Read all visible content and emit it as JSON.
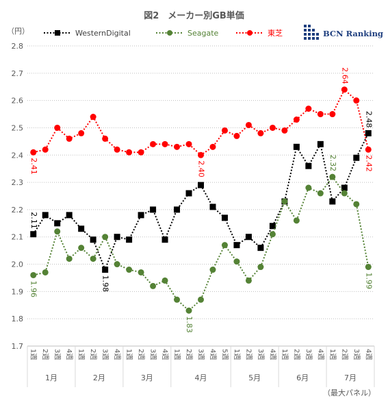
{
  "title": "図2　メーカー別GB単価",
  "unit_label": "（円）",
  "footnote": "（最大パネル）",
  "logo": {
    "text": "BCN Ranking",
    "color": "#1f3f7f"
  },
  "chart_data": {
    "type": "line",
    "ylim": [
      1.7,
      2.8
    ],
    "yticks": [
      1.7,
      1.8,
      1.9,
      2.0,
      2.1,
      2.2,
      2.3,
      2.4,
      2.5,
      2.6,
      2.7,
      2.8
    ],
    "grid": true,
    "legend_position": "top",
    "x": [
      "1週",
      "2週",
      "3週",
      "4週",
      "1週",
      "2週",
      "3週",
      "4週",
      "1週",
      "2週",
      "3週",
      "4週",
      "1週",
      "2週",
      "3週",
      "4週",
      "5週",
      "1週",
      "2週",
      "3週",
      "4週",
      "1週",
      "2週",
      "3週",
      "4週",
      "1週",
      "2週",
      "3週",
      "4週"
    ],
    "months": [
      {
        "label": "1月",
        "weeks": 4
      },
      {
        "label": "2月",
        "weeks": 4
      },
      {
        "label": "3月",
        "weeks": 4
      },
      {
        "label": "4月",
        "weeks": 5
      },
      {
        "label": "5月",
        "weeks": 4
      },
      {
        "label": "6月",
        "weeks": 4
      },
      {
        "label": "7月",
        "weeks": 4
      }
    ],
    "series": [
      {
        "name": "WesternDigital",
        "color": "#000000",
        "marker": "square",
        "values": [
          2.11,
          2.18,
          2.15,
          2.18,
          2.13,
          2.09,
          1.98,
          2.1,
          2.09,
          2.18,
          2.2,
          2.09,
          2.2,
          2.26,
          2.29,
          2.21,
          2.17,
          2.07,
          2.1,
          2.06,
          2.14,
          2.23,
          2.43,
          2.36,
          2.44,
          2.23,
          2.28,
          2.39,
          2.48
        ],
        "labels": [
          {
            "index": 0,
            "text": "2.11",
            "pos": "above"
          },
          {
            "index": 6,
            "text": "1.98",
            "pos": "below"
          },
          {
            "index": 28,
            "text": "2.48",
            "pos": "above"
          }
        ]
      },
      {
        "name": "Seagate",
        "color": "#548235",
        "marker": "circle",
        "values": [
          1.96,
          1.97,
          2.12,
          2.02,
          2.06,
          2.02,
          2.1,
          2.0,
          1.98,
          1.97,
          1.92,
          1.94,
          1.87,
          1.83,
          1.87,
          1.98,
          2.07,
          2.01,
          1.94,
          1.99,
          2.11,
          2.23,
          2.16,
          2.28,
          2.26,
          2.32,
          2.26,
          2.22,
          1.99
        ],
        "labels": [
          {
            "index": 0,
            "text": "1.96",
            "pos": "below"
          },
          {
            "index": 13,
            "text": "1.83",
            "pos": "below"
          },
          {
            "index": 25,
            "text": "2.32",
            "pos": "above"
          },
          {
            "index": 28,
            "text": "1.99",
            "pos": "below"
          }
        ]
      },
      {
        "name": "東芝",
        "color": "#ff0000",
        "marker": "circle",
        "values": [
          2.41,
          2.42,
          2.5,
          2.46,
          2.48,
          2.54,
          2.46,
          2.42,
          2.41,
          2.41,
          2.44,
          2.44,
          2.43,
          2.44,
          2.4,
          2.43,
          2.49,
          2.47,
          2.51,
          2.48,
          2.5,
          2.49,
          2.53,
          2.57,
          2.55,
          2.55,
          2.64,
          2.6,
          2.42
        ],
        "labels": [
          {
            "index": 0,
            "text": "2.41",
            "pos": "below"
          },
          {
            "index": 14,
            "text": "2.40",
            "pos": "below"
          },
          {
            "index": 26,
            "text": "2.64",
            "pos": "above"
          },
          {
            "index": 28,
            "text": "2.42",
            "pos": "below"
          }
        ]
      }
    ]
  }
}
